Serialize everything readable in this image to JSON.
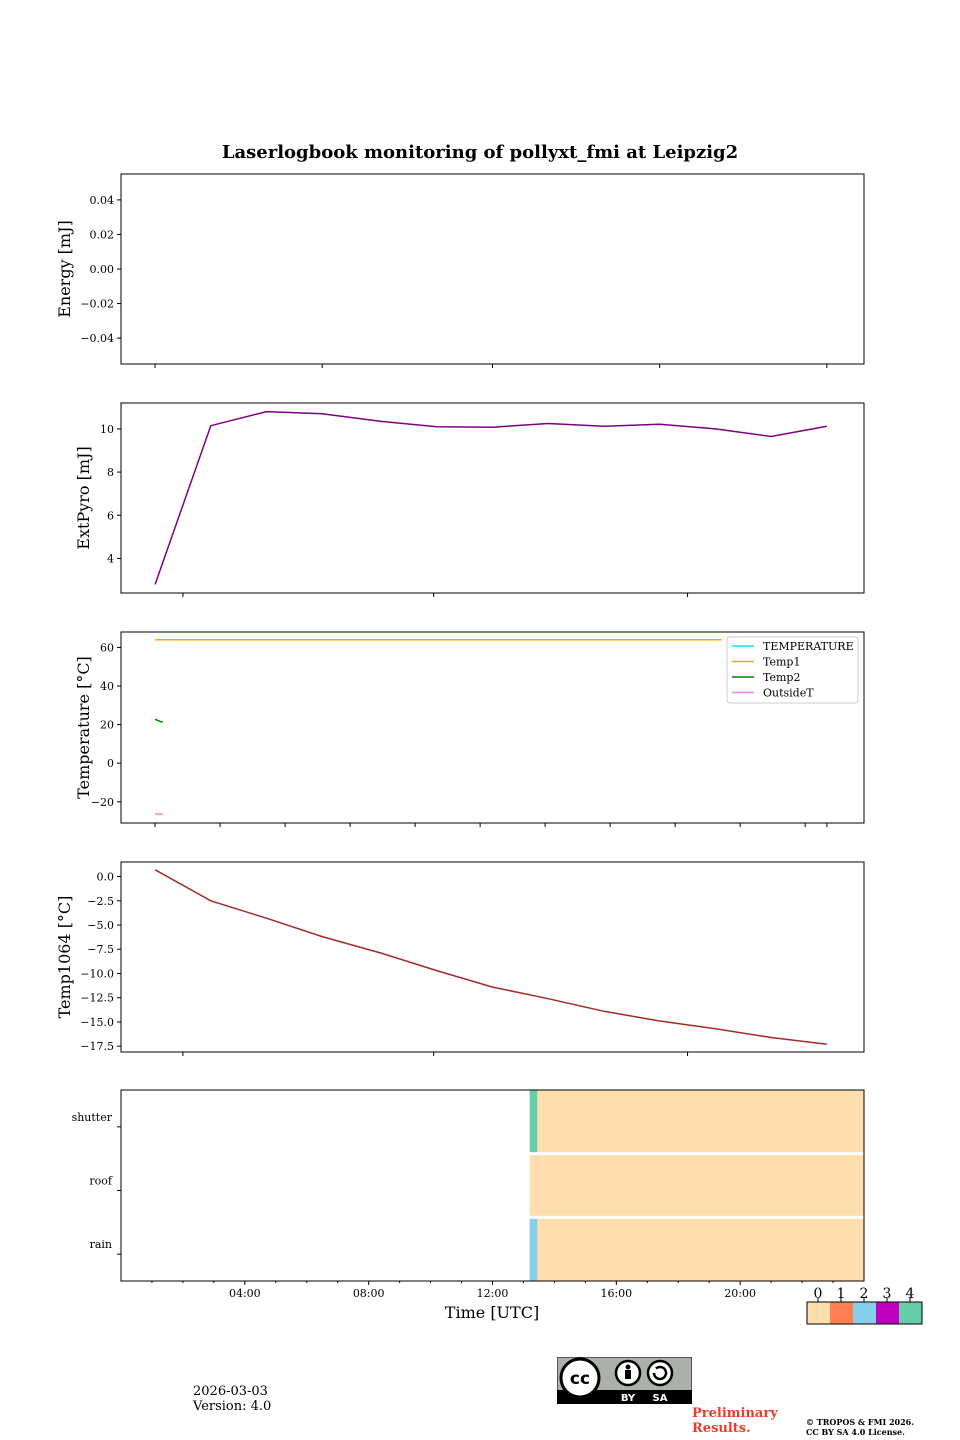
{
  "chart_data": [
    {
      "type": "line",
      "title": "Laserlogbook monitoring of pollyxt_fmi at Leipzig2",
      "ylabel": "Energy [mJ]",
      "ylim": [
        -0.055,
        0.055
      ],
      "yticks": [
        0.04,
        0.02,
        0.0,
        -0.02,
        -0.04
      ],
      "ytick_labels": [
        "0.04",
        "0.02",
        "0.00",
        "−0.02",
        "−0.04"
      ],
      "series": []
    },
    {
      "type": "line",
      "ylabel": "ExtPyro [mJ]",
      "ylim": [
        2.4,
        11.2
      ],
      "yticks": [
        10,
        8,
        6,
        4
      ],
      "ytick_labels": [
        "10",
        "8",
        "6",
        "4"
      ],
      "series": [
        {
          "name": "ExtPyro",
          "color": "#800080",
          "x_hours": [
            1.1,
            2.9,
            4.7,
            6.5,
            8.4,
            10.2,
            12.0,
            13.8,
            15.6,
            17.4,
            19.2,
            21.0,
            22.8
          ],
          "values": [
            2.8,
            10.15,
            10.8,
            10.7,
            10.35,
            10.1,
            10.08,
            10.25,
            10.12,
            10.22,
            10.0,
            9.65,
            10.12
          ]
        }
      ]
    },
    {
      "type": "line",
      "ylabel": "Temperature [°C]",
      "ylim": [
        -31,
        68
      ],
      "yticks": [
        60,
        40,
        20,
        0,
        -20
      ],
      "ytick_labels": [
        "60",
        "40",
        "20",
        "0",
        "−20"
      ],
      "legend_position": "upper right",
      "series": [
        {
          "name": "TEMPERATURE",
          "color": "#00e5e5",
          "x_hours": [],
          "values": []
        },
        {
          "name": "Temp1",
          "color": "#ffa500",
          "x_hours": [
            1.1,
            19.4
          ],
          "values": [
            64,
            64
          ]
        },
        {
          "name": "Temp2",
          "color": "#008000",
          "x_hours": [
            1.1,
            1.2,
            1.35
          ],
          "values": [
            22.8,
            22.0,
            21.2
          ]
        },
        {
          "name": "OutsideT",
          "color": "#ee82ee",
          "x_hours": [
            1.1,
            1.35
          ],
          "values": [
            -26.3,
            -26.3
          ]
        }
      ]
    },
    {
      "type": "line",
      "ylabel": "Temp1064 [°C]",
      "ylim": [
        -18.1,
        1.5
      ],
      "yticks": [
        0.0,
        -2.5,
        -5.0,
        -7.5,
        -10.0,
        -12.5,
        -15.0,
        -17.5
      ],
      "ytick_labels": [
        "0.0",
        "−2.5",
        "−5.0",
        "−7.5",
        "−10.0",
        "−12.5",
        "−15.0",
        "−17.5"
      ],
      "series": [
        {
          "name": "Temp1064",
          "color": "#a52a2a",
          "x_hours": [
            1.1,
            2.9,
            4.7,
            6.5,
            8.4,
            10.2,
            12.0,
            13.8,
            15.6,
            17.4,
            19.2,
            21.0,
            22.8
          ],
          "values": [
            0.7,
            -2.5,
            -4.3,
            -6.2,
            -7.9,
            -9.7,
            -11.4,
            -12.6,
            -13.9,
            -14.9,
            -15.7,
            -16.6,
            -17.3
          ]
        }
      ]
    },
    {
      "type": "heatmap",
      "xlabel": "Time [UTC]",
      "rows": [
        "shutter",
        "roof",
        "rain"
      ],
      "xlim_hours": [
        0,
        24
      ],
      "xticks_hours": [
        4,
        8,
        12,
        16,
        20
      ],
      "xtick_labels": [
        "04:00",
        "08:00",
        "12:00",
        "16:00",
        "20:00"
      ],
      "segments": [
        {
          "row": "shutter",
          "start_hours": 13.2,
          "end_hours": 13.45,
          "status": 4
        },
        {
          "row": "shutter",
          "start_hours": 13.45,
          "end_hours": 24.0,
          "status": 0
        },
        {
          "row": "roof",
          "start_hours": 13.2,
          "end_hours": 24.0,
          "status": 0
        },
        {
          "row": "rain",
          "start_hours": 13.2,
          "end_hours": 13.45,
          "status": 2
        },
        {
          "row": "rain",
          "start_hours": 13.45,
          "end_hours": 24.0,
          "status": 0
        }
      ],
      "colorbar": {
        "labels": [
          "0",
          "1",
          "2",
          "3",
          "4"
        ],
        "colors": [
          "#ffdead",
          "#ff7f50",
          "#87ceeb",
          "#c000c0",
          "#66cdaa"
        ]
      }
    }
  ],
  "footer": {
    "date": "2026-03-03",
    "version": "Version: 4.0",
    "preliminary_line1": "Preliminary",
    "preliminary_line2": "Results.",
    "copyright_line1": "© TROPOS & FMI 2026.",
    "copyright_line2": "CC BY SA 4.0 License.",
    "cc_badge": {
      "cc": "cc",
      "by": "BY",
      "sa": "SA"
    }
  }
}
